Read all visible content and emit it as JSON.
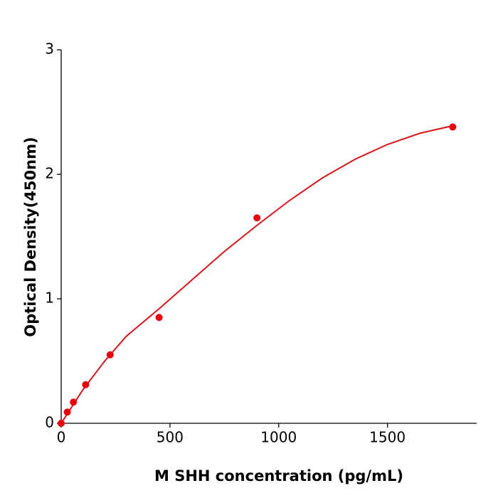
{
  "chart_data": {
    "type": "scatter",
    "xlabel": "M  SHH concentration (pg/mL)",
    "ylabel": "Optical Density(450nm)",
    "xlim": [
      0,
      1910
    ],
    "xticks": [
      0,
      500,
      1000,
      1500
    ],
    "ylim": [
      0,
      3
    ],
    "yticks": [
      0,
      1,
      2,
      3
    ],
    "series": [
      {
        "style": "markers",
        "color": "#e8000b",
        "x": [
          0,
          28.125,
          56.25,
          112.5,
          225,
          450,
          900,
          1800
        ],
        "values": [
          0,
          0.09,
          0.17,
          0.31,
          0.55,
          0.85,
          1.65,
          2.38
        ]
      },
      {
        "style": "line",
        "color": "#d9141b",
        "x": [
          0,
          100,
          200,
          300,
          450,
          600,
          750,
          900,
          1050,
          1200,
          1350,
          1500,
          1650,
          1800
        ],
        "values": [
          0,
          0.27,
          0.5,
          0.7,
          0.92,
          1.15,
          1.38,
          1.59,
          1.79,
          1.97,
          2.12,
          2.24,
          2.33,
          2.39
        ]
      }
    ]
  }
}
